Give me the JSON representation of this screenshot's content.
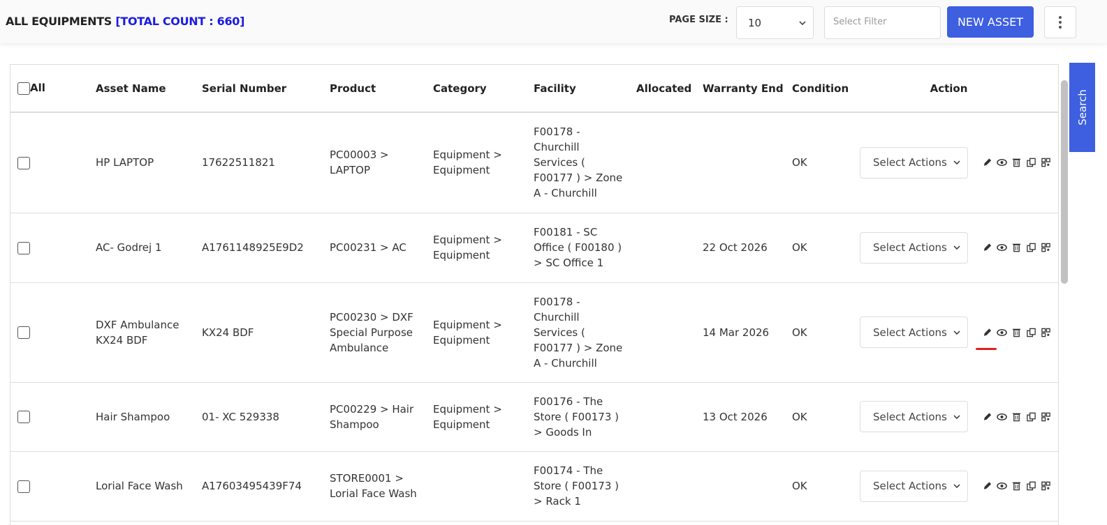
{
  "header": {
    "title": "ALL EQUIPMENTS",
    "count": "[TOTAL COUNT : 660]",
    "page_size_label": "PAGE SIZE :",
    "page_size": "10",
    "filter_placeholder": "Select Filter",
    "new_button": "NEW ASSET"
  },
  "side_tab": "Search",
  "table": {
    "columns": [
      "All",
      "Asset Name",
      "Serial Number",
      "Product",
      "Category",
      "Facility",
      "Allocated",
      "Warranty End",
      "Condition",
      "Action"
    ],
    "rows": [
      {
        "asset_name": "HP LAPTOP",
        "serial_number": "17622511821",
        "product": "PC00003 > LAPTOP",
        "category": "Equipment > Equipment",
        "facility": "F00178 - Churchill Services ( F00177 ) > Zone A - Churchill",
        "condition": "OK",
        "action": "Select Actions"
      },
      {
        "asset_name": "AC- Godrej 1",
        "serial_number": "A1761148925E9D2",
        "product": "PC00231 > AC",
        "category": "Equipment > Equipment",
        "facility": "F00181 - SC Office ( F00180 ) > SC Office 1",
        "warranty_end": "22 Oct 2026",
        "condition": "OK",
        "action": "Select Actions"
      },
      {
        "asset_name": "DXF Ambulance KX24 BDF",
        "serial_number": "KX24 BDF",
        "product": "PC00230 > DXF Special Purpose Ambulance",
        "category": "Equipment > Equipment",
        "facility": "F00178 - Churchill Services ( F00177 ) > Zone A - Churchill",
        "warranty_end": "14 Mar 2026",
        "condition": "OK",
        "action": "Select Actions"
      },
      {
        "asset_name": "Hair Shampoo",
        "serial_number": "01- XC 529338",
        "product": "PC00229 > Hair Shampoo",
        "category": "Equipment > Equipment",
        "facility": "F00176 - The Store ( F00173 ) > Goods In",
        "warranty_end": "13 Oct 2026",
        "condition": "OK",
        "action": "Select Actions"
      },
      {
        "asset_name": "Lorial Face Wash",
        "serial_number": "A17603495439F74",
        "product": "STORE0001 > Lorial Face Wash",
        "facility": "F00174 - The Store ( F00173 ) > Rack 1",
        "condition": "OK",
        "action": "Select Actions"
      }
    ]
  }
}
